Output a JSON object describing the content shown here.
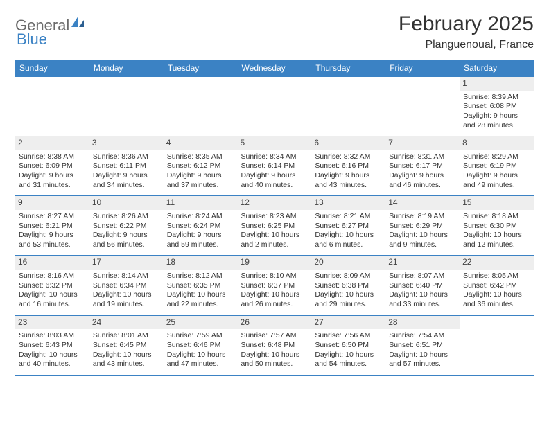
{
  "logo": {
    "word1": "General",
    "word2": "Blue"
  },
  "title": "February 2025",
  "location": "Planguenoual, France",
  "colors": {
    "header_bg": "#3b82c4",
    "header_text": "#ffffff",
    "border": "#3b82c4",
    "daynum_bg": "#eeeeee",
    "body_text": "#333333",
    "logo_gray": "#6b6b6b",
    "logo_blue": "#3b82c4",
    "page_bg": "#ffffff"
  },
  "weekdays": [
    "Sunday",
    "Monday",
    "Tuesday",
    "Wednesday",
    "Thursday",
    "Friday",
    "Saturday"
  ],
  "weeks": [
    [
      null,
      null,
      null,
      null,
      null,
      null,
      {
        "n": "1",
        "sunrise": "8:39 AM",
        "sunset": "6:08 PM",
        "daylight": "9 hours and 28 minutes."
      }
    ],
    [
      {
        "n": "2",
        "sunrise": "8:38 AM",
        "sunset": "6:09 PM",
        "daylight": "9 hours and 31 minutes."
      },
      {
        "n": "3",
        "sunrise": "8:36 AM",
        "sunset": "6:11 PM",
        "daylight": "9 hours and 34 minutes."
      },
      {
        "n": "4",
        "sunrise": "8:35 AM",
        "sunset": "6:12 PM",
        "daylight": "9 hours and 37 minutes."
      },
      {
        "n": "5",
        "sunrise": "8:34 AM",
        "sunset": "6:14 PM",
        "daylight": "9 hours and 40 minutes."
      },
      {
        "n": "6",
        "sunrise": "8:32 AM",
        "sunset": "6:16 PM",
        "daylight": "9 hours and 43 minutes."
      },
      {
        "n": "7",
        "sunrise": "8:31 AM",
        "sunset": "6:17 PM",
        "daylight": "9 hours and 46 minutes."
      },
      {
        "n": "8",
        "sunrise": "8:29 AM",
        "sunset": "6:19 PM",
        "daylight": "9 hours and 49 minutes."
      }
    ],
    [
      {
        "n": "9",
        "sunrise": "8:27 AM",
        "sunset": "6:21 PM",
        "daylight": "9 hours and 53 minutes."
      },
      {
        "n": "10",
        "sunrise": "8:26 AM",
        "sunset": "6:22 PM",
        "daylight": "9 hours and 56 minutes."
      },
      {
        "n": "11",
        "sunrise": "8:24 AM",
        "sunset": "6:24 PM",
        "daylight": "9 hours and 59 minutes."
      },
      {
        "n": "12",
        "sunrise": "8:23 AM",
        "sunset": "6:25 PM",
        "daylight": "10 hours and 2 minutes."
      },
      {
        "n": "13",
        "sunrise": "8:21 AM",
        "sunset": "6:27 PM",
        "daylight": "10 hours and 6 minutes."
      },
      {
        "n": "14",
        "sunrise": "8:19 AM",
        "sunset": "6:29 PM",
        "daylight": "10 hours and 9 minutes."
      },
      {
        "n": "15",
        "sunrise": "8:18 AM",
        "sunset": "6:30 PM",
        "daylight": "10 hours and 12 minutes."
      }
    ],
    [
      {
        "n": "16",
        "sunrise": "8:16 AM",
        "sunset": "6:32 PM",
        "daylight": "10 hours and 16 minutes."
      },
      {
        "n": "17",
        "sunrise": "8:14 AM",
        "sunset": "6:34 PM",
        "daylight": "10 hours and 19 minutes."
      },
      {
        "n": "18",
        "sunrise": "8:12 AM",
        "sunset": "6:35 PM",
        "daylight": "10 hours and 22 minutes."
      },
      {
        "n": "19",
        "sunrise": "8:10 AM",
        "sunset": "6:37 PM",
        "daylight": "10 hours and 26 minutes."
      },
      {
        "n": "20",
        "sunrise": "8:09 AM",
        "sunset": "6:38 PM",
        "daylight": "10 hours and 29 minutes."
      },
      {
        "n": "21",
        "sunrise": "8:07 AM",
        "sunset": "6:40 PM",
        "daylight": "10 hours and 33 minutes."
      },
      {
        "n": "22",
        "sunrise": "8:05 AM",
        "sunset": "6:42 PM",
        "daylight": "10 hours and 36 minutes."
      }
    ],
    [
      {
        "n": "23",
        "sunrise": "8:03 AM",
        "sunset": "6:43 PM",
        "daylight": "10 hours and 40 minutes."
      },
      {
        "n": "24",
        "sunrise": "8:01 AM",
        "sunset": "6:45 PM",
        "daylight": "10 hours and 43 minutes."
      },
      {
        "n": "25",
        "sunrise": "7:59 AM",
        "sunset": "6:46 PM",
        "daylight": "10 hours and 47 minutes."
      },
      {
        "n": "26",
        "sunrise": "7:57 AM",
        "sunset": "6:48 PM",
        "daylight": "10 hours and 50 minutes."
      },
      {
        "n": "27",
        "sunrise": "7:56 AM",
        "sunset": "6:50 PM",
        "daylight": "10 hours and 54 minutes."
      },
      {
        "n": "28",
        "sunrise": "7:54 AM",
        "sunset": "6:51 PM",
        "daylight": "10 hours and 57 minutes."
      },
      null
    ]
  ],
  "labels": {
    "sunrise": "Sunrise:",
    "sunset": "Sunset:",
    "daylight": "Daylight:"
  }
}
